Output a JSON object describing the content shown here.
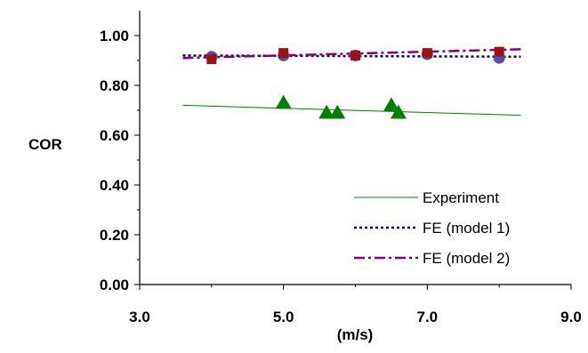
{
  "chart_data": {
    "type": "scatter",
    "title": "",
    "xlabel": "(m/s)",
    "ylabel": "COR",
    "xlim": [
      3.0,
      9.0
    ],
    "ylim": [
      0.0,
      1.1
    ],
    "x_ticks": [
      "3.0",
      "5.0",
      "7.0",
      "9.0"
    ],
    "y_ticks": [
      "0.00",
      "0.20",
      "0.40",
      "0.60",
      "0.80",
      "1.00"
    ],
    "grid": false,
    "legend_position": "bottom-right",
    "series": [
      {
        "name": "Experiment",
        "kind": "markers-with-trendline",
        "marker": "triangle",
        "color": "#008000",
        "points": [
          [
            5.0,
            0.73
          ],
          [
            5.6,
            0.69
          ],
          [
            5.75,
            0.69
          ],
          [
            6.5,
            0.72
          ],
          [
            6.6,
            0.69
          ]
        ],
        "trend": [
          [
            3.6,
            0.72
          ],
          [
            8.3,
            0.68
          ]
        ]
      },
      {
        "name": "FE (model 1)",
        "kind": "markers-with-line",
        "marker": "circle",
        "color": "#5050b8",
        "line_color": "#000080",
        "line_style": "dotted",
        "points": [
          [
            4.0,
            0.915
          ],
          [
            5.0,
            0.92
          ],
          [
            6.0,
            0.92
          ],
          [
            7.0,
            0.925
          ],
          [
            8.0,
            0.91
          ]
        ],
        "line": [
          [
            3.6,
            0.92
          ],
          [
            8.3,
            0.915
          ]
        ]
      },
      {
        "name": "FE (model 2)",
        "kind": "markers-with-line",
        "marker": "square",
        "color": "#a01010",
        "line_color": "#800080",
        "line_style": "dash-dot",
        "points": [
          [
            4.0,
            0.905
          ],
          [
            5.0,
            0.93
          ],
          [
            6.0,
            0.92
          ],
          [
            7.0,
            0.93
          ],
          [
            8.0,
            0.935
          ]
        ],
        "line": [
          [
            3.6,
            0.91
          ],
          [
            8.3,
            0.945
          ]
        ]
      }
    ]
  }
}
